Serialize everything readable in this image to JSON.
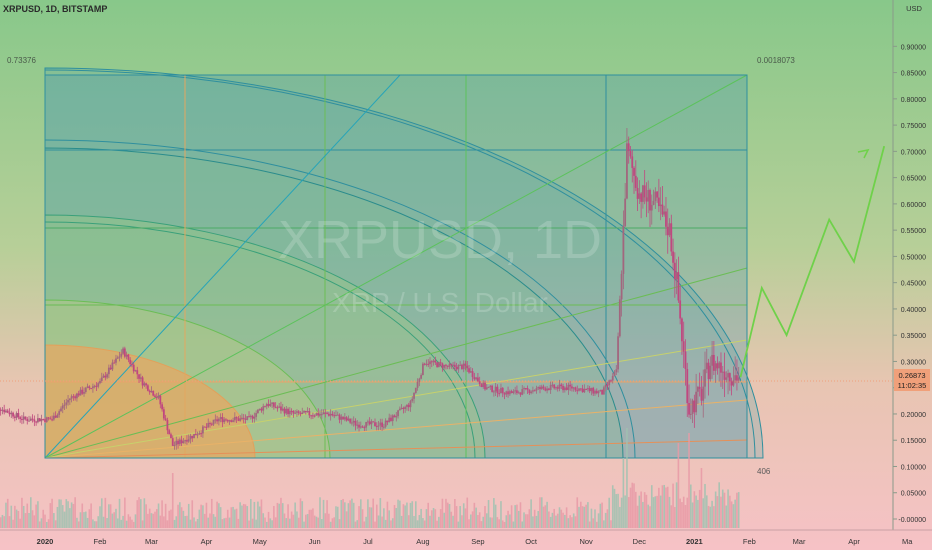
{
  "header": {
    "symbol_line": "XRPUSD, 1D, BITSTAMP",
    "currency": "USD"
  },
  "watermark": {
    "line1": "XRPUSD, 1D",
    "line2": "XRP / U.S. Dollar"
  },
  "drawing_labels": {
    "top_left_price": "0.73376",
    "top_right_price": "0.0018073",
    "bar_count": "406"
  },
  "price_tag": {
    "value": "0.26873",
    "countdown": "11:02:35",
    "color": "#f0a07a"
  },
  "colors": {
    "bg_top": "#88c88a",
    "bg_bottom": "#f6c2c6",
    "candle_color": "#c0477f",
    "projection_color": "#6fd14a",
    "arc_color": "#2f8f9e",
    "fan_color": "#27a4b8"
  },
  "chart_data": {
    "type": "candlestick",
    "title": "XRPUSD, 1D, BITSTAMP",
    "ylabel": "USD",
    "y_ticks": [
      "0.90000",
      "0.85000",
      "0.80000",
      "0.75000",
      "0.70000",
      "0.65000",
      "0.60000",
      "0.55000",
      "0.50000",
      "0.45000",
      "0.40000",
      "0.35000",
      "0.30000",
      "0.25000",
      "0.20000",
      "0.15000",
      "0.10000",
      "0.05000",
      "-0.00000"
    ],
    "x_ticks": [
      "2020",
      "Feb",
      "Mar",
      "Apr",
      "May",
      "Jun",
      "Jul",
      "Aug",
      "Sep",
      "Oct",
      "Nov",
      "Dec",
      "2021",
      "Feb",
      "Mar",
      "Apr",
      "Ma"
    ],
    "ylim": [
      -0.01,
      0.95
    ],
    "close_path": [
      {
        "date": "2019-12-01",
        "price": 0.22
      },
      {
        "date": "2019-12-20",
        "price": 0.19
      },
      {
        "date": "2020-01-05",
        "price": 0.19
      },
      {
        "date": "2020-01-15",
        "price": 0.23
      },
      {
        "date": "2020-02-01",
        "price": 0.26
      },
      {
        "date": "2020-02-14",
        "price": 0.32
      },
      {
        "date": "2020-02-25",
        "price": 0.26
      },
      {
        "date": "2020-03-05",
        "price": 0.23
      },
      {
        "date": "2020-03-13",
        "price": 0.14
      },
      {
        "date": "2020-03-25",
        "price": 0.16
      },
      {
        "date": "2020-04-08",
        "price": 0.19
      },
      {
        "date": "2020-04-25",
        "price": 0.19
      },
      {
        "date": "2020-05-05",
        "price": 0.22
      },
      {
        "date": "2020-05-20",
        "price": 0.2
      },
      {
        "date": "2020-06-10",
        "price": 0.2
      },
      {
        "date": "2020-06-25",
        "price": 0.18
      },
      {
        "date": "2020-07-10",
        "price": 0.18
      },
      {
        "date": "2020-07-25",
        "price": 0.22
      },
      {
        "date": "2020-08-02",
        "price": 0.3
      },
      {
        "date": "2020-08-15",
        "price": 0.29
      },
      {
        "date": "2020-08-25",
        "price": 0.29
      },
      {
        "date": "2020-09-05",
        "price": 0.25
      },
      {
        "date": "2020-09-20",
        "price": 0.24
      },
      {
        "date": "2020-10-10",
        "price": 0.25
      },
      {
        "date": "2020-10-25",
        "price": 0.25
      },
      {
        "date": "2020-11-10",
        "price": 0.24
      },
      {
        "date": "2020-11-18",
        "price": 0.28
      },
      {
        "date": "2020-11-22",
        "price": 0.55
      },
      {
        "date": "2020-11-24",
        "price": 0.7
      },
      {
        "date": "2020-12-01",
        "price": 0.62
      },
      {
        "date": "2020-12-10",
        "price": 0.6
      },
      {
        "date": "2020-12-18",
        "price": 0.55
      },
      {
        "date": "2020-12-22",
        "price": 0.45
      },
      {
        "date": "2020-12-29",
        "price": 0.21
      },
      {
        "date": "2021-01-05",
        "price": 0.24
      },
      {
        "date": "2021-01-10",
        "price": 0.3
      },
      {
        "date": "2021-01-20",
        "price": 0.28
      },
      {
        "date": "2021-01-27",
        "price": 0.26873
      }
    ],
    "projection": [
      {
        "date": "2021-01-27",
        "price": 0.27
      },
      {
        "date": "2021-02-08",
        "price": 0.44
      },
      {
        "date": "2021-02-22",
        "price": 0.35
      },
      {
        "date": "2021-03-18",
        "price": 0.57
      },
      {
        "date": "2021-04-01",
        "price": 0.49
      },
      {
        "date": "2021-04-18",
        "price": 0.71
      }
    ],
    "grid": false
  }
}
